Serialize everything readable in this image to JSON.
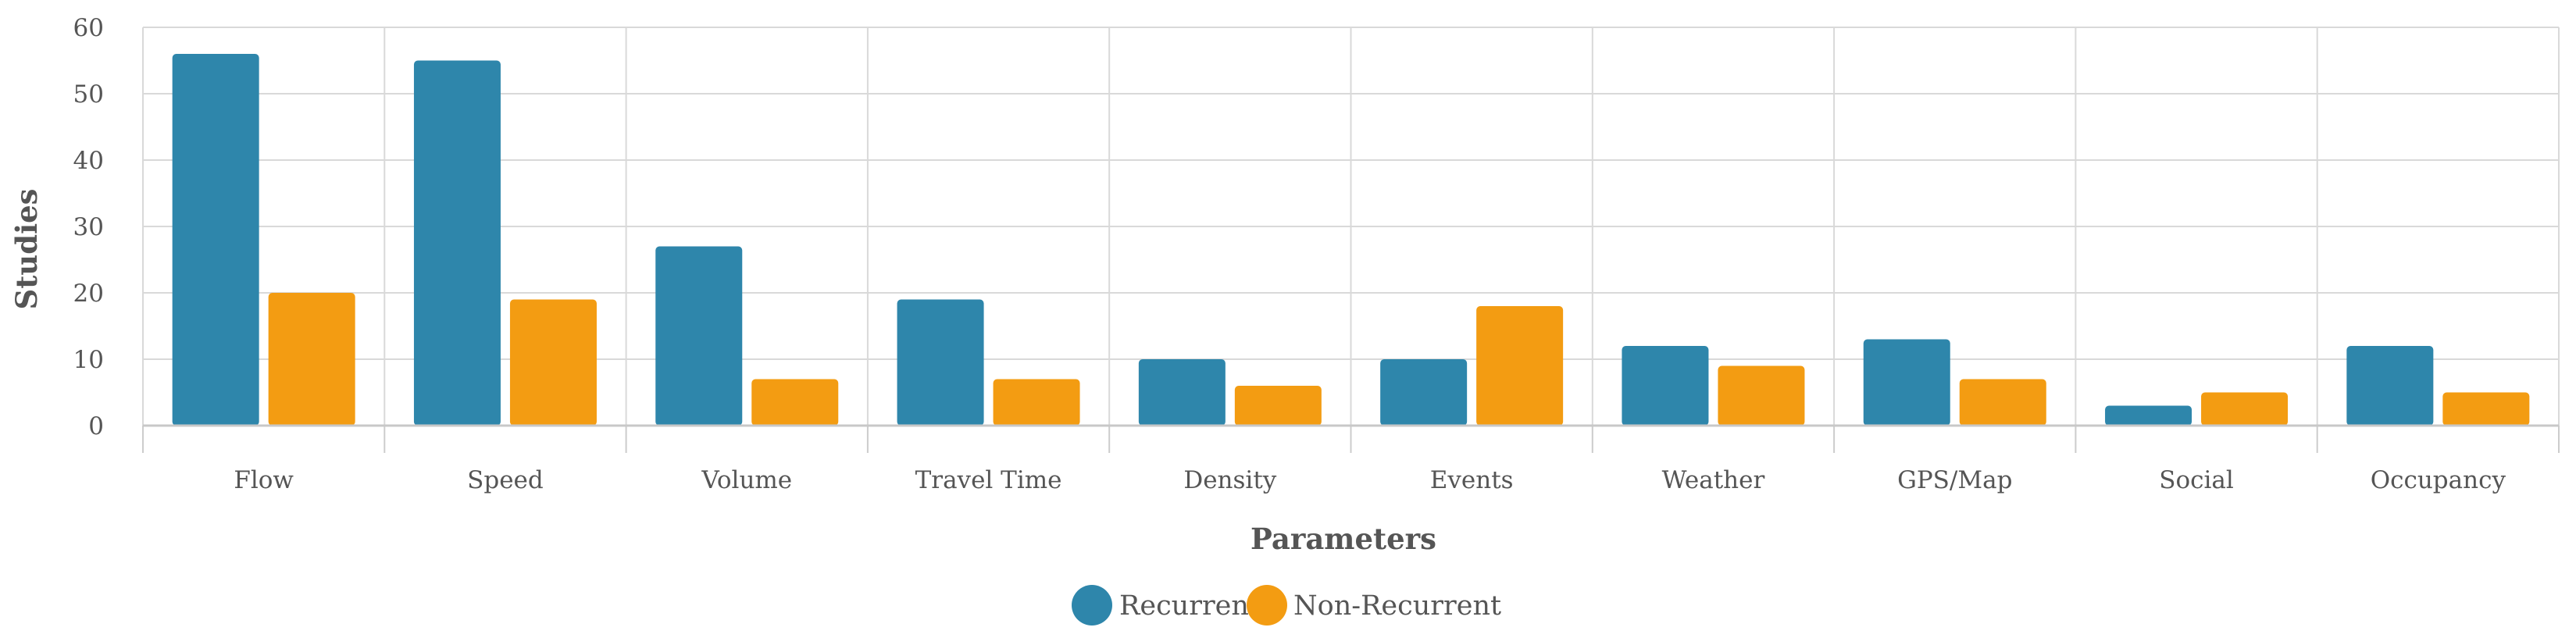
{
  "chart_data": {
    "type": "bar",
    "title": "",
    "xlabel": "Parameters",
    "ylabel": "Studies",
    "ylim": [
      0,
      60
    ],
    "yticks": [
      0,
      10,
      20,
      30,
      40,
      50,
      60
    ],
    "grid": true,
    "legend_position": "bottom-center",
    "categories": [
      "Flow",
      "Speed",
      "Volume",
      "Travel Time",
      "Density",
      "Events",
      "Weather",
      "GPS/Map",
      "Social",
      "Occupancy"
    ],
    "series": [
      {
        "name": "Recurrent",
        "color": "#2e86ab",
        "values": [
          56,
          55,
          27,
          19,
          10,
          10,
          12,
          13,
          3,
          12
        ]
      },
      {
        "name": "Non-Recurrent",
        "color": "#f39c12",
        "values": [
          20,
          19,
          7,
          7,
          6,
          18,
          9,
          7,
          5,
          5
        ]
      }
    ]
  }
}
